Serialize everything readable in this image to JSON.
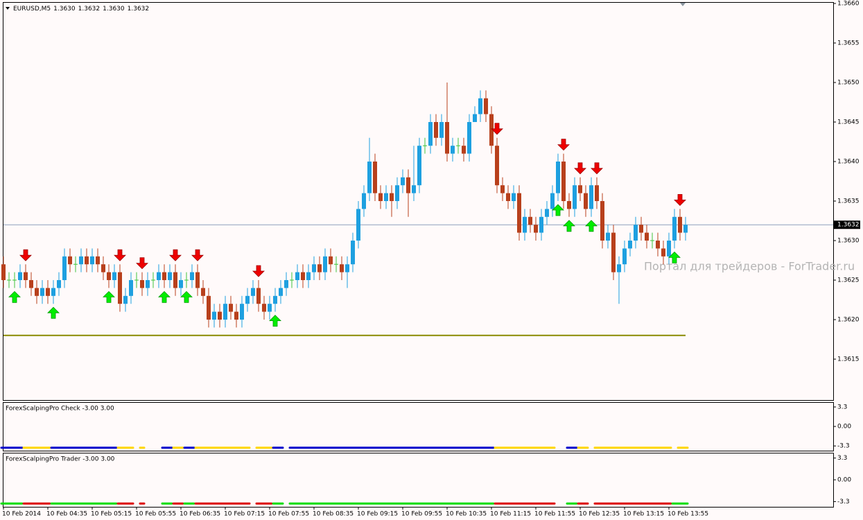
{
  "chart_data": [
    {
      "type": "candlestick",
      "symbol": "EURUSD,M5",
      "quote": [
        {
          "value": 1.363,
          "label": "1.3630"
        },
        1.3632,
        {
          "value": 1.363,
          "label": "1.3630"
        },
        1.3632
      ],
      "watermark": "Портал для трейдеров - ForTrader.ru",
      "open": [
        1.3627,
        1.3625,
        1.3625,
        1.3625,
        1.3626,
        1.3625,
        1.3624,
        1.3623,
        1.3624,
        1.3623,
        1.3624,
        1.3625,
        1.3628,
        1.3627,
        1.3627,
        1.3628,
        1.3627,
        1.3628,
        1.3627,
        1.3626,
        1.3625,
        1.3626,
        1.3622,
        1.3623,
        1.3625,
        1.3625,
        1.3624,
        1.3625,
        1.3625,
        1.3626,
        1.3625,
        1.3626,
        1.3624,
        1.3625,
        1.3625,
        1.3626,
        1.3624,
        1.3623,
        1.362,
        1.3621,
        1.362,
        1.3622,
        1.3621,
        1.362,
        1.3622,
        1.3623,
        1.3624,
        1.3622,
        1.3621,
        1.3622,
        1.3623,
        1.3624,
        1.3625,
        1.3625,
        1.3626,
        1.3625,
        1.3626,
        1.3627,
        1.3626,
        1.3628,
        1.3627,
        1.3627,
        1.3626,
        1.3627,
        1.363,
        1.3634,
        1.3636,
        1.364,
        1.3636,
        1.3635,
        1.3636,
        1.3635,
        1.3637,
        1.3638,
        1.3636,
        1.3637,
        1.3642,
        1.3642,
        1.3645,
        1.3643,
        1.3645,
        1.3641,
        1.3642,
        1.3642,
        1.3641,
        1.3645,
        1.3646,
        1.3648,
        1.3646,
        1.3642,
        1.3637,
        1.3636,
        1.3635,
        1.3636,
        1.3631,
        1.3633,
        1.3632,
        1.3631,
        1.3633,
        1.3634,
        1.3636,
        1.364,
        1.3635,
        1.3634,
        1.3637,
        1.3636,
        1.3634,
        1.3637,
        1.3635,
        1.363,
        1.3631,
        1.3626,
        1.3627,
        1.3629,
        1.363,
        1.3632,
        1.3631,
        1.363,
        1.363,
        1.3629,
        1.3628,
        1.363,
        1.3633,
        1.3631
      ],
      "high": [
        1.3628,
        1.3626,
        1.3626,
        1.3627,
        1.3627,
        1.3626,
        1.3625,
        1.3625,
        1.3625,
        1.3625,
        1.3626,
        1.3629,
        1.3629,
        1.3628,
        1.3629,
        1.3629,
        1.3629,
        1.3629,
        1.3628,
        1.3627,
        1.3627,
        1.3627,
        1.3624,
        1.3626,
        1.3626,
        1.3626,
        1.3626,
        1.3626,
        1.3627,
        1.3627,
        1.3627,
        1.3627,
        1.3626,
        1.3626,
        1.3627,
        1.3627,
        1.3625,
        1.3624,
        1.3622,
        1.3622,
        1.3623,
        1.3623,
        1.3622,
        1.3623,
        1.3624,
        1.3625,
        1.3625,
        1.3623,
        1.3623,
        1.3624,
        1.3625,
        1.3626,
        1.3626,
        1.3627,
        1.3627,
        1.3627,
        1.3628,
        1.3628,
        1.3629,
        1.3629,
        1.3628,
        1.3628,
        1.3628,
        1.3631,
        1.3635,
        1.3637,
        1.3643,
        1.3641,
        1.3637,
        1.3637,
        1.3637,
        1.3638,
        1.3639,
        1.3639,
        1.3642,
        1.3643,
        1.3643,
        1.3646,
        1.3646,
        1.3646,
        1.365,
        1.3643,
        1.3643,
        1.3643,
        1.3646,
        1.3647,
        1.3649,
        1.3649,
        1.3647,
        1.3643,
        1.3638,
        1.3637,
        1.3637,
        1.3637,
        1.3634,
        1.3634,
        1.3633,
        1.3634,
        1.3635,
        1.3637,
        1.3641,
        1.3641,
        1.3636,
        1.3638,
        1.3638,
        1.3637,
        1.3638,
        1.3638,
        1.3636,
        1.3632,
        1.3632,
        1.3628,
        1.363,
        1.3631,
        1.3633,
        1.3633,
        1.3632,
        1.3631,
        1.3631,
        1.363,
        1.3631,
        1.3634,
        1.3634,
        1.3633
      ],
      "low": [
        1.3624,
        1.3624,
        1.3624,
        1.3624,
        1.3624,
        1.3623,
        1.3622,
        1.3622,
        1.3622,
        1.3622,
        1.3623,
        1.3624,
        1.3626,
        1.3626,
        1.3626,
        1.3626,
        1.3626,
        1.3626,
        1.3625,
        1.3624,
        1.3624,
        1.3621,
        1.3621,
        1.3622,
        1.3624,
        1.3623,
        1.3623,
        1.3624,
        1.3624,
        1.3624,
        1.3624,
        1.3623,
        1.3623,
        1.3624,
        1.3624,
        1.3623,
        1.3622,
        1.3619,
        1.3619,
        1.3619,
        1.3619,
        1.362,
        1.3619,
        1.3619,
        1.3621,
        1.3622,
        1.3621,
        1.362,
        1.362,
        1.3621,
        1.3622,
        1.3623,
        1.3624,
        1.3624,
        1.3624,
        1.3624,
        1.3625,
        1.3625,
        1.3625,
        1.3626,
        1.3626,
        1.3625,
        1.3624,
        1.3626,
        1.3629,
        1.3633,
        1.3635,
        1.3635,
        1.3634,
        1.3634,
        1.3633,
        1.3634,
        1.3636,
        1.3633,
        1.3635,
        1.3636,
        1.3641,
        1.3641,
        1.3642,
        1.3642,
        1.364,
        1.364,
        1.3641,
        1.364,
        1.364,
        1.3645,
        1.3645,
        1.3645,
        1.3641,
        1.3636,
        1.3635,
        1.3634,
        1.3634,
        1.363,
        1.363,
        1.3631,
        1.363,
        1.363,
        1.3632,
        1.3633,
        1.3635,
        1.3634,
        1.3633,
        1.3633,
        1.3635,
        1.3633,
        1.3633,
        1.3634,
        1.3629,
        1.3629,
        1.3625,
        1.3622,
        1.3626,
        1.3628,
        1.3629,
        1.363,
        1.3629,
        1.3629,
        1.3628,
        1.3627,
        1.3627,
        1.3629,
        1.363,
        1.363
      ],
      "close": [
        1.3625,
        1.3625,
        1.3625,
        1.3626,
        1.3625,
        1.3624,
        1.3623,
        1.3624,
        1.3623,
        1.3624,
        1.3625,
        1.3628,
        1.3627,
        1.3627,
        1.3628,
        1.3627,
        1.3628,
        1.3627,
        1.3626,
        1.3625,
        1.3626,
        1.3622,
        1.3623,
        1.3625,
        1.3625,
        1.3624,
        1.3625,
        1.3625,
        1.3626,
        1.3625,
        1.3626,
        1.3624,
        1.3625,
        1.3625,
        1.3626,
        1.3624,
        1.3623,
        1.362,
        1.3621,
        1.362,
        1.3622,
        1.3621,
        1.362,
        1.3622,
        1.3623,
        1.3624,
        1.3622,
        1.3621,
        1.3622,
        1.3623,
        1.3624,
        1.3625,
        1.3625,
        1.3626,
        1.3625,
        1.3626,
        1.3627,
        1.3626,
        1.3628,
        1.3627,
        1.3627,
        1.3626,
        1.3627,
        1.363,
        1.3634,
        1.3636,
        1.364,
        1.3636,
        1.3635,
        1.3636,
        1.3635,
        1.3637,
        1.3638,
        1.3636,
        1.3637,
        1.3642,
        1.3642,
        1.3645,
        1.3643,
        1.3645,
        1.3641,
        1.3642,
        1.3642,
        1.3641,
        1.3645,
        1.3646,
        1.3648,
        1.3646,
        1.3642,
        1.3637,
        1.3636,
        1.3635,
        1.3636,
        1.3631,
        1.3633,
        1.3632,
        1.3631,
        1.3633,
        1.3634,
        1.3636,
        1.364,
        1.3635,
        1.3634,
        1.3637,
        1.3636,
        1.3634,
        1.3637,
        1.3635,
        1.363,
        1.3631,
        1.3626,
        1.3627,
        1.3629,
        1.363,
        1.3632,
        1.3631,
        1.363,
        1.363,
        1.3629,
        1.3628,
        1.363,
        1.3633,
        1.3631,
        1.3632
      ],
      "up_color": "#1ea0e0",
      "down_color": "#b8401c",
      "doji_color": "#3cc43c",
      "xlim": [
        0,
        149.625
      ],
      "xticks": [
        {
          "value": 0,
          "label": "10 Feb 2014"
        },
        {
          "value": 8,
          "label": "10 Feb 04:35"
        },
        {
          "value": 16,
          "label": "10 Feb 05:15"
        },
        {
          "value": 24,
          "label": "10 Feb 05:55"
        },
        {
          "value": 32,
          "label": "10 Feb 06:35"
        },
        {
          "value": 40,
          "label": "10 Feb 07:15"
        },
        {
          "value": 48,
          "label": "10 Feb 07:55"
        },
        {
          "value": 56,
          "label": "10 Feb 08:35"
        },
        {
          "value": 64,
          "label": "10 Feb 09:15"
        },
        {
          "value": 72,
          "label": "10 Feb 09:55"
        },
        {
          "value": 80,
          "label": "10 Feb 10:35"
        },
        {
          "value": 88,
          "label": "10 Feb 11:15"
        },
        {
          "value": 96,
          "label": "10 Feb 11:55"
        },
        {
          "value": 104,
          "label": "10 Feb 12:35"
        },
        {
          "value": 112,
          "label": "10 Feb 13:15"
        },
        {
          "value": 120,
          "label": "10 Feb 13:55"
        }
      ],
      "ylim": [
        1.361,
        1.366
      ],
      "yticks": [
        1.3615,
        {
          "value": 1.362,
          "label": "1.3620"
        },
        1.3625,
        {
          "value": 1.363,
          "label": "1.3630"
        },
        1.3635,
        {
          "value": 1.364,
          "label": "1.3640"
        },
        1.3645,
        {
          "value": 1.365,
          "label": "1.3650"
        },
        1.3655,
        {
          "value": 1.366,
          "label": "1.3660"
        }
      ],
      "current_price": 1.3632,
      "current_price_color": "#8da0bd",
      "level": 1.3618,
      "level_color": "#8a8a00",
      "buy_arrows": [
        2,
        9,
        19,
        29,
        33,
        49,
        100,
        102,
        106,
        121
      ],
      "buy_color": "#00ee00",
      "sell_arrows": [
        4,
        21,
        25,
        31,
        35,
        46,
        89,
        101,
        104,
        107,
        122
      ],
      "sell_color": "#ee0000"
    },
    {
      "type": "segments",
      "title": "ForexScalpingPro Check -3.00 3.00",
      "ylim": [
        -4.1,
        4.0
      ],
      "yticks": [
        3.3,
        {
          "value": 0,
          "label": "0.00"
        },
        -3.3
      ],
      "level": -3.6,
      "segments": [
        {
          "from": 0,
          "to": 3,
          "color": "#0000cc"
        },
        {
          "from": 4,
          "to": 8,
          "color": "#ffd700"
        },
        {
          "from": 9,
          "to": 20,
          "color": "#0000cc"
        },
        {
          "from": 21,
          "to": 23,
          "color": "#ffd700"
        },
        {
          "from": 25,
          "to": 25,
          "color": "#ffd700"
        },
        {
          "from": 29,
          "to": 30,
          "color": "#0000cc"
        },
        {
          "from": 31,
          "to": 32,
          "color": "#ffd700"
        },
        {
          "from": 33,
          "to": 34,
          "color": "#0000cc"
        },
        {
          "from": 35,
          "to": 44,
          "color": "#ffd700"
        },
        {
          "from": 46,
          "to": 48,
          "color": "#ffd700"
        },
        {
          "from": 49,
          "to": 50,
          "color": "#0000cc"
        },
        {
          "from": 52,
          "to": 88,
          "color": "#0000cc"
        },
        {
          "from": 89,
          "to": 99,
          "color": "#ffd700"
        },
        {
          "from": 102,
          "to": 103,
          "color": "#0000cc"
        },
        {
          "from": 104,
          "to": 105,
          "color": "#ffd700"
        },
        {
          "from": 107,
          "to": 120,
          "color": "#ffd700"
        },
        {
          "from": 122,
          "to": 123,
          "color": "#ffd700"
        }
      ]
    },
    {
      "type": "segments",
      "title": "ForexScalpingPro Trader -3.00 3.00",
      "ylim": [
        -4.1,
        4.0
      ],
      "yticks": [
        3.3,
        {
          "value": 0,
          "label": "0.00"
        },
        -3.3
      ],
      "level": -3.6,
      "segments": [
        {
          "from": 0,
          "to": 3,
          "color": "#00dd00"
        },
        {
          "from": 4,
          "to": 8,
          "color": "#dd0000"
        },
        {
          "from": 9,
          "to": 20,
          "color": "#00dd00"
        },
        {
          "from": 21,
          "to": 23,
          "color": "#dd0000"
        },
        {
          "from": 25,
          "to": 25,
          "color": "#dd0000"
        },
        {
          "from": 29,
          "to": 30,
          "color": "#00dd00"
        },
        {
          "from": 31,
          "to": 32,
          "color": "#dd0000"
        },
        {
          "from": 33,
          "to": 34,
          "color": "#00dd00"
        },
        {
          "from": 35,
          "to": 44,
          "color": "#dd0000"
        },
        {
          "from": 46,
          "to": 48,
          "color": "#dd0000"
        },
        {
          "from": 49,
          "to": 50,
          "color": "#00dd00"
        },
        {
          "from": 52,
          "to": 88,
          "color": "#00dd00"
        },
        {
          "from": 89,
          "to": 99,
          "color": "#dd0000"
        },
        {
          "from": 102,
          "to": 103,
          "color": "#00dd00"
        },
        {
          "from": 104,
          "to": 105,
          "color": "#dd0000"
        },
        {
          "from": 107,
          "to": 120,
          "color": "#dd0000"
        },
        {
          "from": 121,
          "to": 123,
          "color": "#00dd00"
        }
      ]
    }
  ]
}
